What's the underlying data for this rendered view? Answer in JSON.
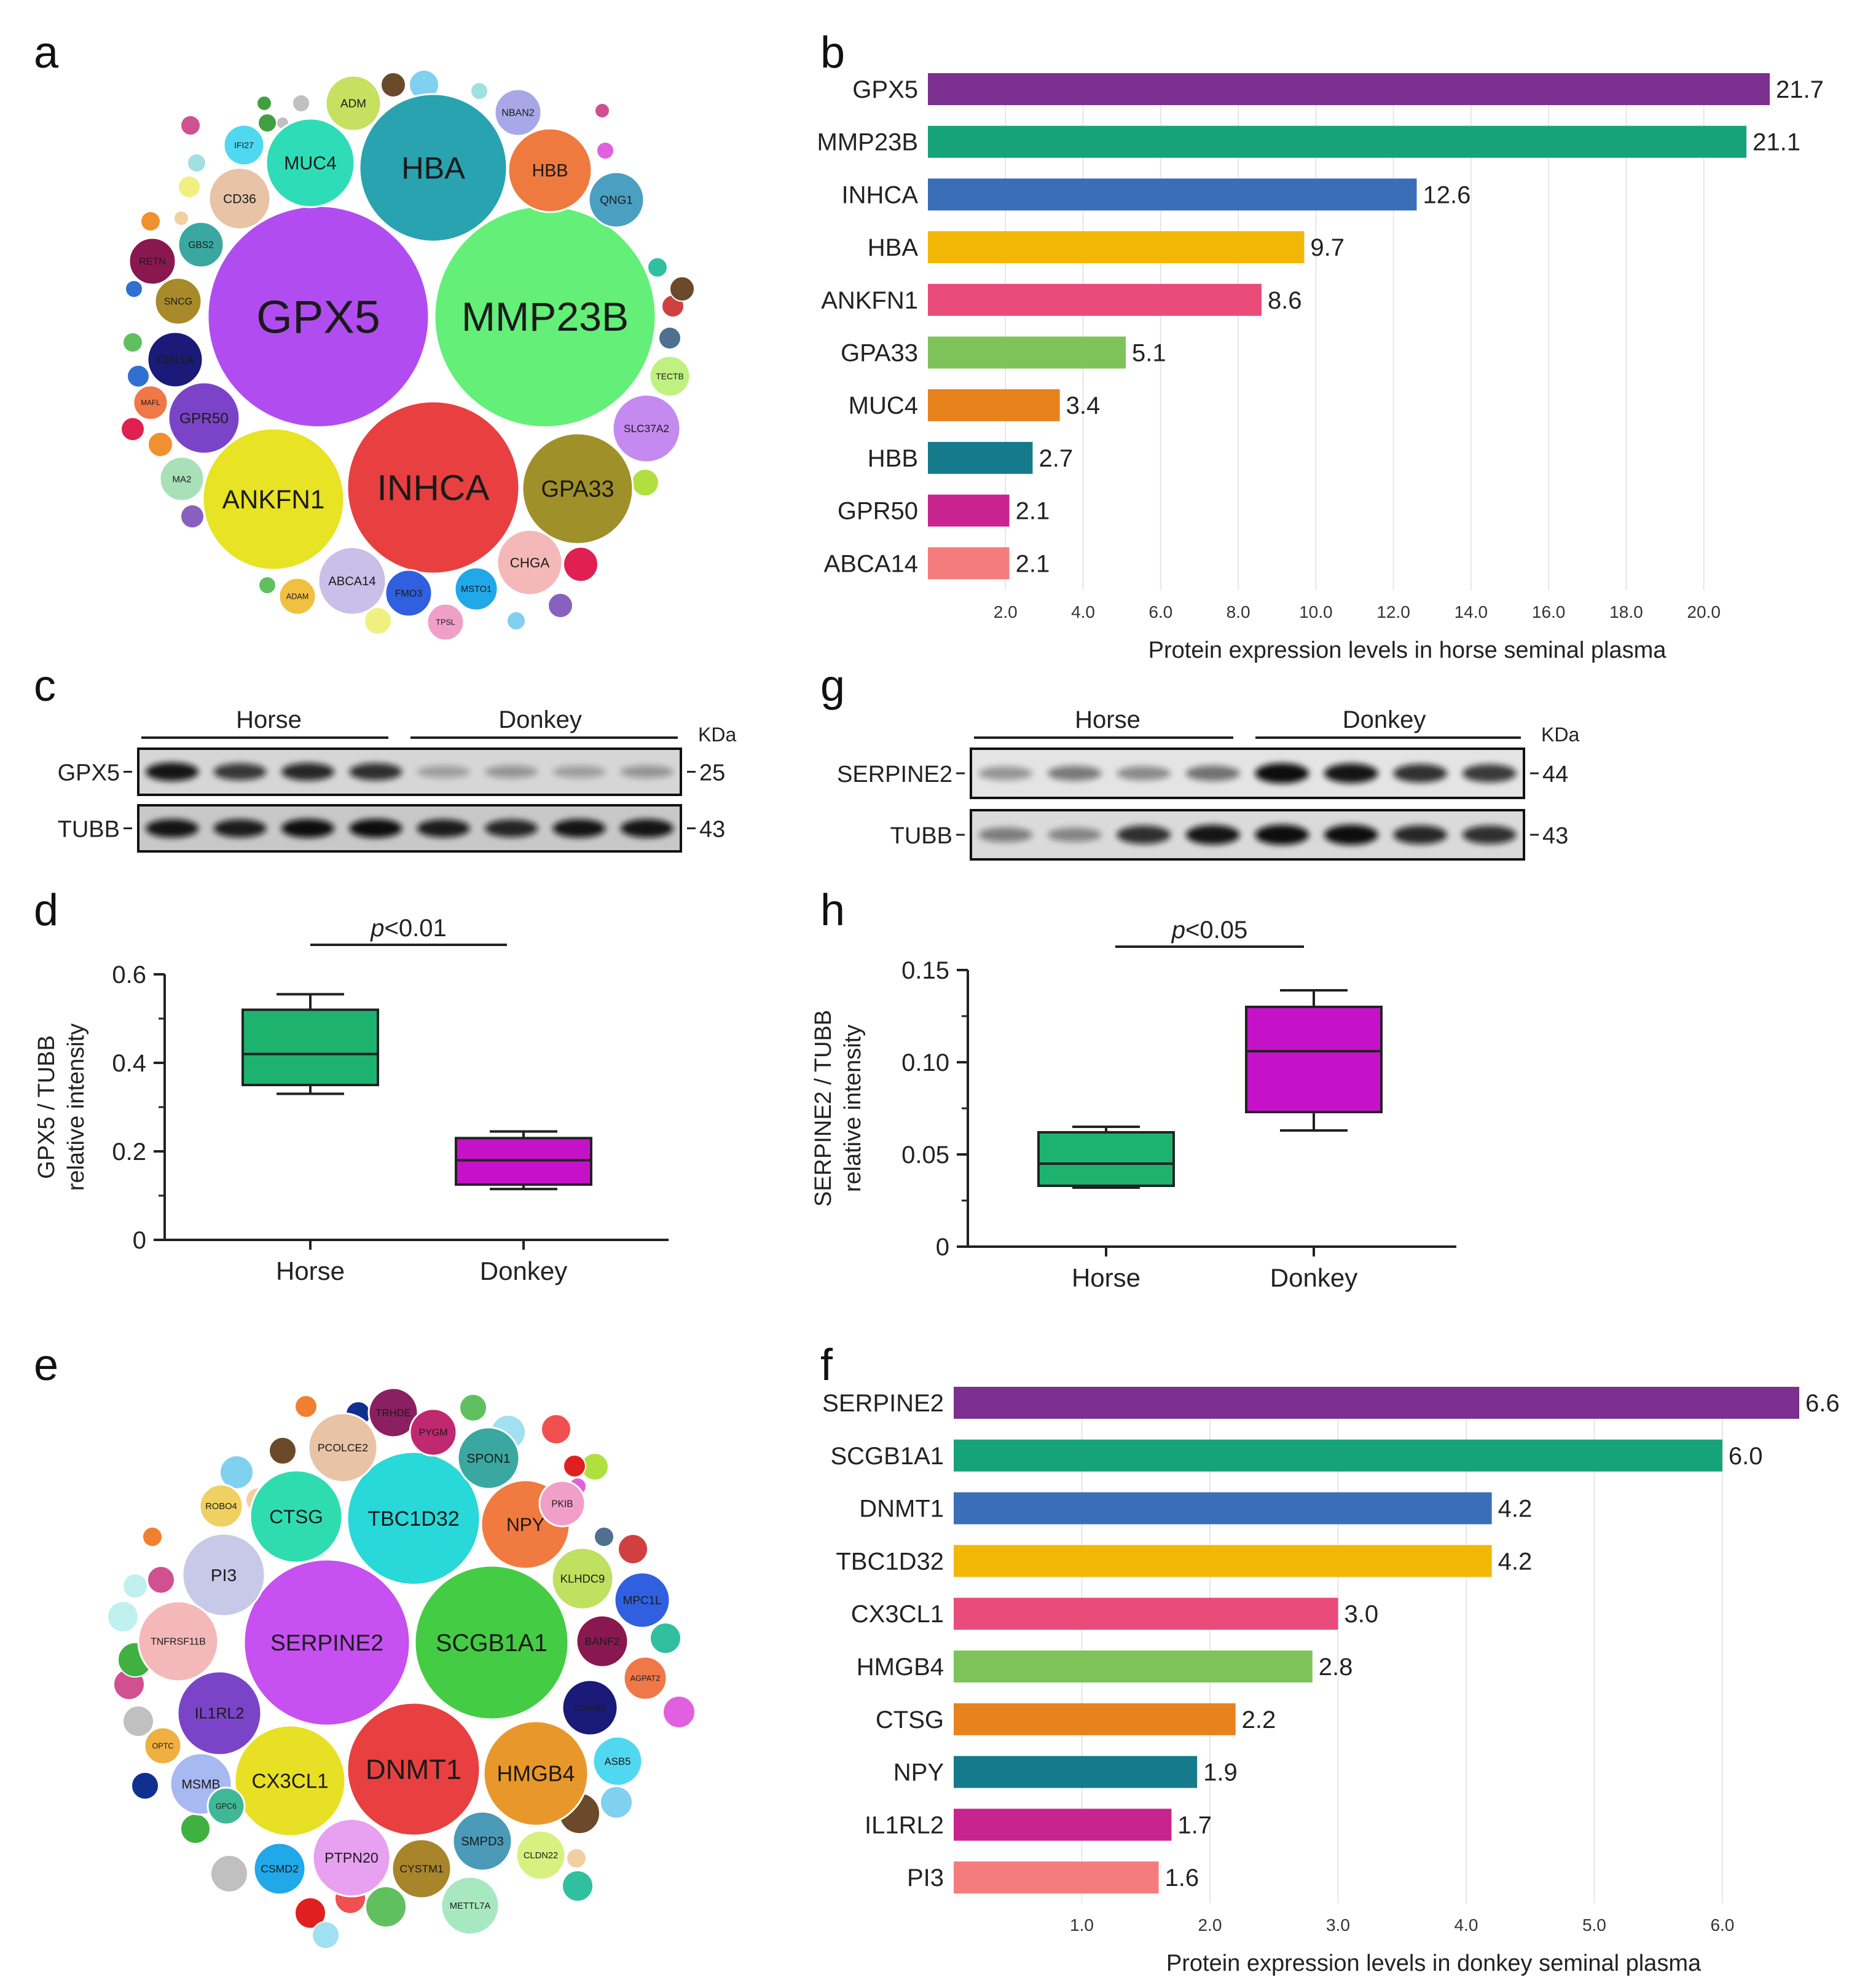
{
  "panels": {
    "a": "a",
    "b": "b",
    "c": "c",
    "d": "d",
    "e": "e",
    "f": "f",
    "g": "g",
    "h": "h"
  },
  "chart_data": [
    {
      "id": "b",
      "type": "bar",
      "orientation": "horizontal",
      "categories": [
        "GPX5",
        "MMP23B",
        "INHCA",
        "HBA",
        "ANKFN1",
        "GPA33",
        "MUC4",
        "HBB",
        "GPR50",
        "ABCA14"
      ],
      "values": [
        21.7,
        21.1,
        12.6,
        9.7,
        8.6,
        5.1,
        3.4,
        2.7,
        2.1,
        2.1
      ],
      "value_labels": [
        "21.7",
        "21.1",
        "12.6",
        "9.7",
        "8.6",
        "5.1",
        "3.4",
        "2.7",
        "2.1",
        "2.1"
      ],
      "colors": [
        "#7b2f8e",
        "#17a37a",
        "#3a6fb8",
        "#f2b705",
        "#e94b7b",
        "#7dc35a",
        "#e8821c",
        "#157b8c",
        "#c9238f",
        "#f47c7c"
      ],
      "xlim": [
        0,
        21.7
      ],
      "xticks": [
        2.0,
        4.0,
        6.0,
        8.0,
        10.0,
        12.0,
        14.0,
        16.0,
        18.0,
        20.0
      ],
      "xtick_labels": [
        "2.0",
        "4.0",
        "6.0",
        "8.0",
        "10.0",
        "12.0",
        "14.0",
        "16.0",
        "18.0",
        "20.0"
      ],
      "xlabel": "Protein expression levels in horse seminal plasma"
    },
    {
      "id": "f",
      "type": "bar",
      "orientation": "horizontal",
      "categories": [
        "SERPINE2",
        "SCGB1A1",
        "DNMT1",
        "TBC1D32",
        "CX3CL1",
        "HMGB4",
        "CTSG",
        "NPY",
        "IL1RL2",
        "PI3"
      ],
      "values": [
        6.6,
        6.0,
        4.2,
        4.2,
        3.0,
        2.8,
        2.2,
        1.9,
        1.7,
        1.6
      ],
      "value_labels": [
        "6.6",
        "6.0",
        "4.2",
        "4.2",
        "3.0",
        "2.8",
        "2.2",
        "1.9",
        "1.7",
        "1.6"
      ],
      "colors": [
        "#7b2f8e",
        "#17a37a",
        "#3a6fb8",
        "#f2b705",
        "#e94b7b",
        "#7dc35a",
        "#e8821c",
        "#157b8c",
        "#c9238f",
        "#f47c7c"
      ],
      "xlim": [
        0,
        6.6
      ],
      "xticks": [
        1.0,
        2.0,
        3.0,
        4.0,
        5.0,
        6.0
      ],
      "xtick_labels": [
        "1.0",
        "2.0",
        "3.0",
        "4.0",
        "5.0",
        "6.0"
      ],
      "xlabel": "Protein expression levels in donkey seminal plasma"
    },
    {
      "id": "d",
      "type": "box",
      "categories": [
        "Horse",
        "Donkey"
      ],
      "boxes": [
        {
          "name": "Horse",
          "min": 0.33,
          "q1": 0.35,
          "median": 0.42,
          "q3": 0.52,
          "max": 0.555,
          "color": "#1db36f"
        },
        {
          "name": "Donkey",
          "min": 0.115,
          "q1": 0.125,
          "median": 0.18,
          "q3": 0.23,
          "max": 0.245,
          "color": "#c512c9"
        }
      ],
      "ylim": [
        0,
        0.6
      ],
      "yticks": [
        0,
        0.2,
        0.4,
        0.6
      ],
      "ytick_labels": [
        "0",
        "0.2",
        "0.4",
        "0.6"
      ],
      "ylabel": [
        "GPX5 / TUBB",
        "relative intensity"
      ],
      "significance": {
        "italic": "p",
        "text": "<0.01"
      }
    },
    {
      "id": "h",
      "type": "box",
      "categories": [
        "Horse",
        "Donkey"
      ],
      "boxes": [
        {
          "name": "Horse",
          "min": 0.032,
          "q1": 0.033,
          "median": 0.045,
          "q3": 0.062,
          "max": 0.065,
          "color": "#1db36f"
        },
        {
          "name": "Donkey",
          "min": 0.063,
          "q1": 0.073,
          "median": 0.106,
          "q3": 0.13,
          "max": 0.139,
          "color": "#c512c9"
        }
      ],
      "ylim": [
        0,
        0.15
      ],
      "yticks": [
        0,
        0.05,
        0.1,
        0.15
      ],
      "ytick_labels": [
        "0",
        "0.05",
        "0.10",
        "0.15"
      ],
      "ylabel": [
        "SERPINE2 / TUBB",
        "relative intensity"
      ],
      "significance": {
        "italic": "p",
        "text": "<0.05"
      }
    }
  ],
  "bubbles_a": {
    "big": [
      {
        "label": "GPX5",
        "color": "#b14df0"
      },
      {
        "label": "MMP23B",
        "color": "#64ef78"
      },
      {
        "label": "INHCA",
        "color": "#e84040"
      },
      {
        "label": "HBA",
        "color": "#29a3b0"
      },
      {
        "label": "ANKFN1",
        "color": "#e8e324"
      },
      {
        "label": "GPA33",
        "color": "#a0902a"
      },
      {
        "label": "MUC4",
        "color": "#2fdcb8"
      },
      {
        "label": "HBB",
        "color": "#ee7a40"
      },
      {
        "label": "GPR50",
        "color": "#7b44c8"
      },
      {
        "label": "SLC37A2",
        "color": "#c58af0"
      },
      {
        "label": "ABCA14",
        "color": "#c8c0e8"
      },
      {
        "label": "CHGA",
        "color": "#f5b8b8"
      },
      {
        "label": "CD36",
        "color": "#e8c3a5"
      },
      {
        "label": "ADM",
        "color": "#c7e060"
      },
      {
        "label": "QNG1",
        "color": "#4aa0c0"
      },
      {
        "label": "TECTB",
        "color": "#c0f080"
      },
      {
        "label": "GBS2",
        "color": "#3aa8a0"
      },
      {
        "label": "MA2",
        "color": "#a8e0b8"
      },
      {
        "label": "SNCG",
        "color": "#a88a2a"
      },
      {
        "label": "FMO3",
        "color": "#3060e0"
      },
      {
        "label": "MSTO1",
        "color": "#20a8e8"
      },
      {
        "label": "NBAN2",
        "color": "#a8a8e8"
      },
      {
        "label": "CD11A",
        "color": "#1a1a78"
      },
      {
        "label": "IFI27",
        "color": "#50d8f0"
      },
      {
        "label": "ADAM",
        "color": "#f0c040"
      },
      {
        "label": "RETN",
        "color": "#8a1850"
      },
      {
        "label": "MAFL",
        "color": "#f07848"
      },
      {
        "label": "TPSL",
        "color": "#f0a0c8"
      }
    ],
    "small_colors": [
      "#e02050",
      "#8860c0",
      "#f0f080",
      "#60c060",
      "#3070d0",
      "#f09030",
      "#a0e0e0",
      "#d05090",
      "#40a040",
      "#c0c0c0",
      "#6a4a2a",
      "#80d0f0",
      "#f0d0a0",
      "#e060e0",
      "#30c0a0",
      "#d04040",
      "#507090",
      "#b0e040"
    ]
  },
  "bubbles_e": {
    "big": [
      {
        "label": "SERPINE2",
        "color": "#c650f0"
      },
      {
        "label": "SCGB1A1",
        "color": "#44cc44"
      },
      {
        "label": "DNMT1",
        "color": "#e84040"
      },
      {
        "label": "TBC1D32",
        "color": "#29d8d8"
      },
      {
        "label": "CX3CL1",
        "color": "#e8e024"
      },
      {
        "label": "HMGB4",
        "color": "#e8982a"
      },
      {
        "label": "CTSG",
        "color": "#2fdcb0"
      },
      {
        "label": "NPY",
        "color": "#f07a40"
      },
      {
        "label": "IL1RL2",
        "color": "#7b44c8"
      },
      {
        "label": "PTPN20",
        "color": "#e8a0f0"
      },
      {
        "label": "PI3",
        "color": "#c8c8e8"
      },
      {
        "label": "TNFRSF11B",
        "color": "#f5b8b8"
      },
      {
        "label": "PCOLCE2",
        "color": "#e8c3a5"
      },
      {
        "label": "SPON1",
        "color": "#3aa8a0"
      },
      {
        "label": "KLHDC9",
        "color": "#c0e060"
      },
      {
        "label": "SMPD3",
        "color": "#4a9ab8"
      },
      {
        "label": "CYSTM1",
        "color": "#a8842a"
      },
      {
        "label": "MSMB",
        "color": "#a8b8f0"
      },
      {
        "label": "METTL7A",
        "color": "#a8e8c0"
      },
      {
        "label": "CLDN22",
        "color": "#d8f080"
      },
      {
        "label": "MPC1L",
        "color": "#3060e0"
      },
      {
        "label": "ASB5",
        "color": "#50d8f0"
      },
      {
        "label": "BANF2",
        "color": "#8a1850"
      },
      {
        "label": "C3orf80",
        "color": "#1a1a78"
      },
      {
        "label": "AGPAT2",
        "color": "#f07848"
      },
      {
        "label": "CSMD2",
        "color": "#20a8e8"
      },
      {
        "label": "OPTC",
        "color": "#f0b040"
      },
      {
        "label": "GPC6",
        "color": "#40b898"
      },
      {
        "label": "ROBO4",
        "color": "#f0d060"
      },
      {
        "label": "PKIB",
        "color": "#f0a0c8"
      },
      {
        "label": "TRHDE",
        "color": "#8a2060"
      },
      {
        "label": "PYGM",
        "color": "#c02870"
      }
    ],
    "small_colors": [
      "#e02020",
      "#f05050",
      "#a0e0f0",
      "#60c060",
      "#103090",
      "#f08030",
      "#c0f0f0",
      "#d05090",
      "#40b040",
      "#c0c0c0",
      "#6a4a2a",
      "#80d0f0",
      "#f0d0a0",
      "#e060e0",
      "#30c0a0",
      "#d04040",
      "#507090",
      "#b0e040"
    ]
  },
  "blot_c": {
    "group_left": "Horse",
    "group_right": "Donkey",
    "unit": "KDa",
    "rows": [
      {
        "label": "GPX5",
        "mw": "25"
      },
      {
        "label": "TUBB",
        "mw": "43"
      }
    ]
  },
  "blot_g": {
    "group_left": "Horse",
    "group_right": "Donkey",
    "unit": "KDa",
    "rows": [
      {
        "label": "SERPINE2",
        "mw": "44"
      },
      {
        "label": "TUBB",
        "mw": "43"
      }
    ]
  }
}
